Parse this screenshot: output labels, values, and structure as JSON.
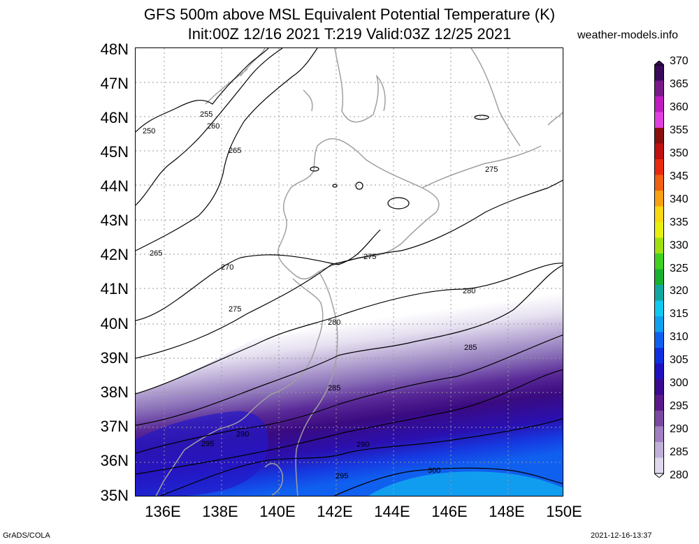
{
  "title_line1": "GFS 500m above MSL Equivalent Potential Temperature (K)",
  "title_line2": "Init:00Z 12/16 2021 T:219 Valid:03Z 12/25 2021",
  "site": "weather-models.info",
  "lat_labels": [
    "48N",
    "47N",
    "46N",
    "45N",
    "44N",
    "43N",
    "42N",
    "41N",
    "40N",
    "39N",
    "38N",
    "37N",
    "36N",
    "35N"
  ],
  "lon_labels": [
    "136E",
    "138E",
    "140E",
    "142E",
    "144E",
    "146E",
    "148E",
    "150E"
  ],
  "colorbar": {
    "labels": [
      "370",
      "365",
      "360",
      "355",
      "350",
      "345",
      "340",
      "335",
      "330",
      "325",
      "320",
      "315",
      "310",
      "305",
      "300",
      "295",
      "290",
      "285",
      "280"
    ],
    "colors": [
      "#3a0a5a",
      "#7a1a8a",
      "#c01cc0",
      "#e040e0",
      "#8a1010",
      "#c01010",
      "#e82a10",
      "#f06010",
      "#f8a010",
      "#f8d810",
      "#e8f010",
      "#a0e010",
      "#40d020",
      "#18b030",
      "#10a8a0",
      "#10c8f0",
      "#10a0f0",
      "#1060f0",
      "#1030e0",
      "#2010c0",
      "#3a0a90",
      "#5a1a8a",
      "#7a4aa0",
      "#a080c0",
      "#c0b0d8",
      "#e0d8ec"
    ]
  },
  "contour_labels": [
    "250",
    "255",
    "260",
    "265",
    "265",
    "270",
    "275",
    "275",
    "275",
    "280",
    "280",
    "285",
    "285",
    "290",
    "290",
    "295",
    "295",
    "300"
  ],
  "footer_left": "GrADS/COLA",
  "footer_right": "2021-12-16-13:37"
}
